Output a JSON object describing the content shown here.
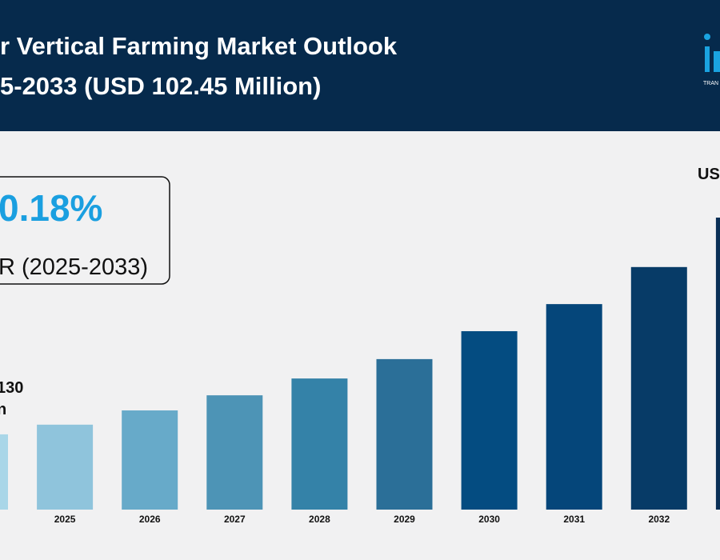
{
  "chart_data": {
    "type": "bar",
    "title": "r Vertical Farming Market Outlook",
    "subtitle": "5-2033 (USD 102.45 Million)",
    "logo": "TRAN",
    "cagr_value": "0.18%",
    "cagr_label": "R (2025-2033)",
    "start_label": [
      "130",
      "n"
    ],
    "end_label": "US",
    "categories": [
      null,
      "2025",
      "2026",
      "2027",
      "2028",
      "2029",
      "2030",
      "2031",
      "2032",
      null
    ],
    "values": [
      26.4,
      29.8,
      34.8,
      40.1,
      46.0,
      52.8,
      62.6,
      72.1,
      85.1,
      102.45
    ],
    "colors": [
      "#a9d6e8",
      "#8fc4dc",
      "#67aac9",
      "#4d94b6",
      "#3482a8",
      "#2b6f98",
      "#044c81",
      "#05467a",
      "#073b67",
      "#0a2f56"
    ]
  }
}
